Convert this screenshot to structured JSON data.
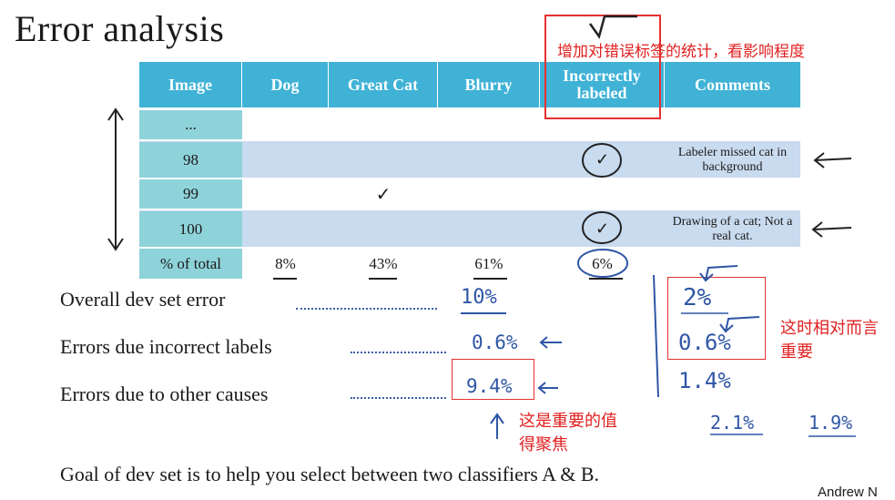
{
  "title": "Error analysis",
  "table": {
    "headers": [
      "Image",
      "Dog",
      "Great Cat",
      "Blurry",
      "Incorrectly labeled",
      "Comments"
    ],
    "rows": [
      {
        "id": "...",
        "dog": "",
        "great_cat": "",
        "blurry": "",
        "incorrect": "",
        "comment": ""
      },
      {
        "id": "98",
        "dog": "",
        "great_cat": "",
        "blurry": "",
        "incorrect": "✓",
        "comment": "Labeler missed cat in background"
      },
      {
        "id": "99",
        "dog": "",
        "great_cat": "✓",
        "blurry": "",
        "incorrect": "",
        "comment": ""
      },
      {
        "id": "100",
        "dog": "",
        "great_cat": "",
        "blurry": "",
        "incorrect": "✓",
        "comment": "Drawing of a cat; Not a real cat."
      }
    ],
    "totals": {
      "label": "% of total",
      "dog": "8%",
      "great_cat": "43%",
      "blurry": "61%",
      "incorrect": "6%"
    }
  },
  "metrics": {
    "overall": {
      "label": "Overall dev set error",
      "value": "10%"
    },
    "incorrect": {
      "label": "Errors due incorrect labels",
      "value": "0.6%"
    },
    "other": {
      "label": "Errors due to other causes",
      "value": "9.4%"
    }
  },
  "right_annotations": {
    "a": "2%",
    "b": "0.6%",
    "c": "1.4%",
    "d": "2.1%",
    "e": "1.9%"
  },
  "cn_notes": {
    "top": "增加对错误标签的统计，看影响程度",
    "right": "这时相对而言重要",
    "bottom": "这是重要的值得聚焦"
  },
  "goal": "Goal of dev set is to help you select between two classifiers A & B.",
  "author": "Andrew N",
  "colors": {
    "header": "#3fb2d6",
    "id_col": "#8fd3da",
    "shade_row": "#c9dbef",
    "ink": "#2f56a6",
    "red": "#e53030"
  }
}
